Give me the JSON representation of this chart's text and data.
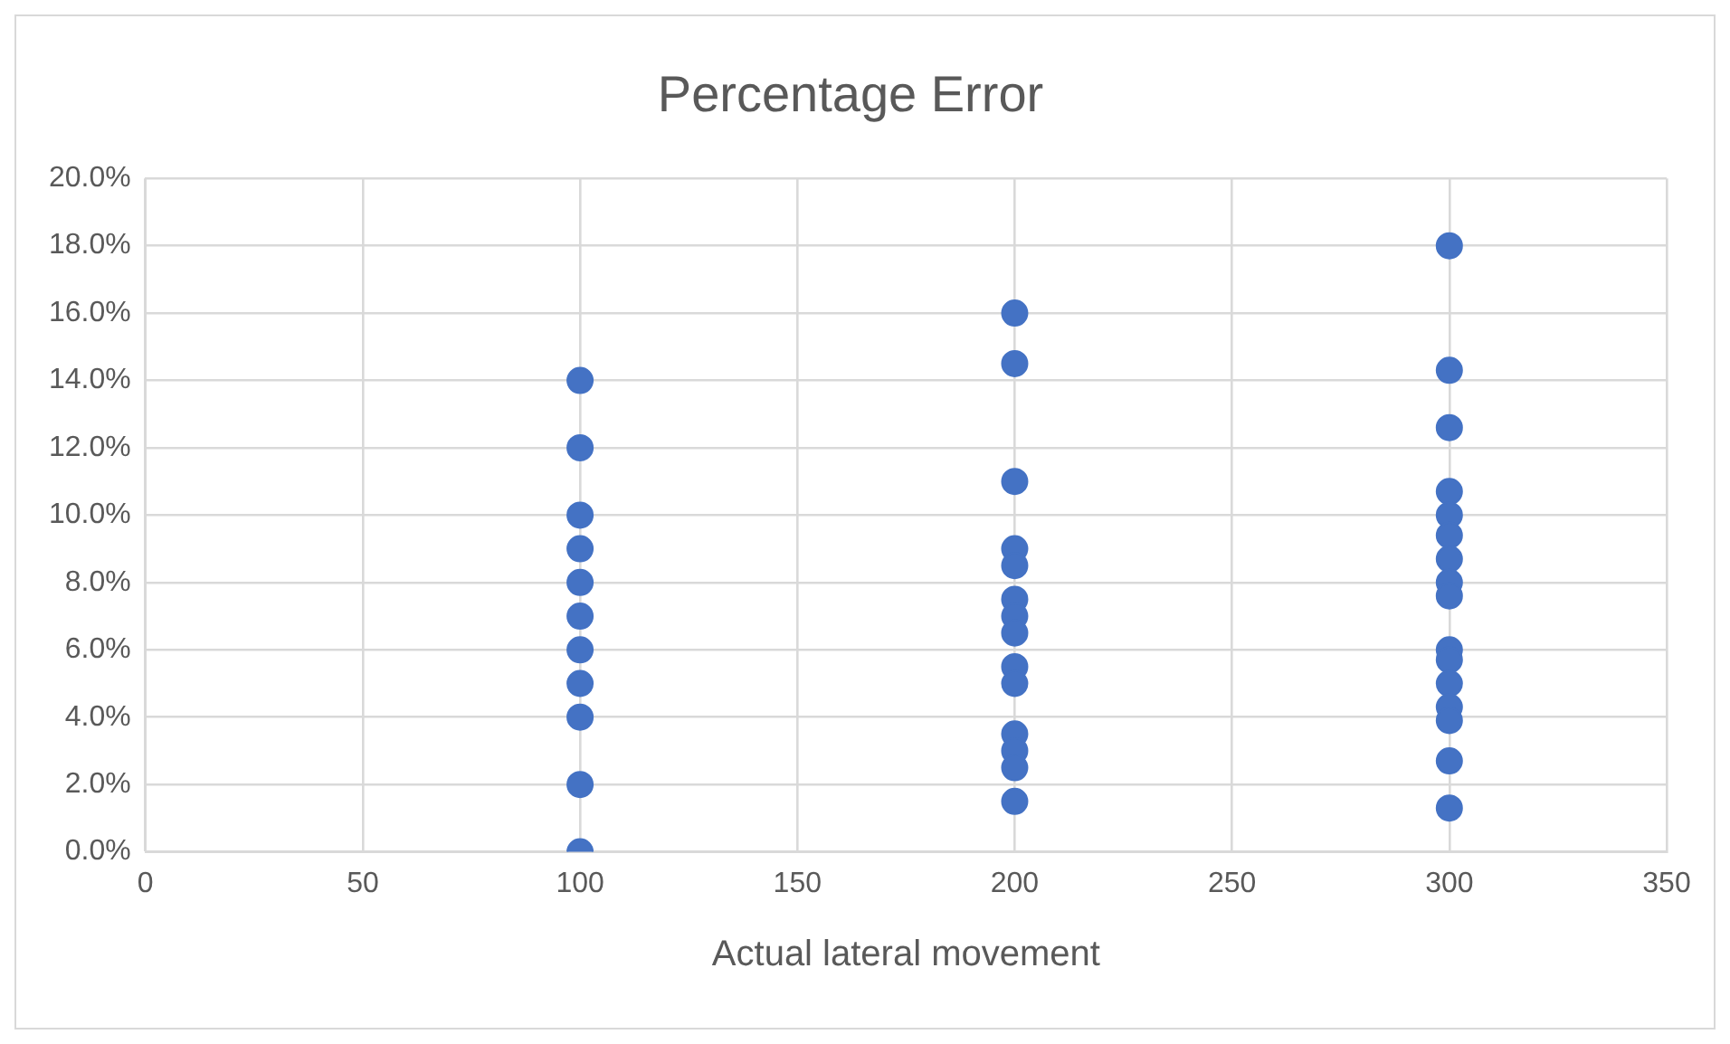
{
  "chart_data": {
    "type": "scatter",
    "title": "Percentage Error",
    "xlabel": "Actual lateral movement",
    "series": [
      {
        "color": "#4472c4",
        "x": [
          100,
          100,
          100,
          100,
          100,
          100,
          100,
          100,
          100,
          100,
          100,
          200,
          200,
          200,
          200,
          200,
          200,
          200,
          200,
          200,
          200,
          200,
          200,
          200,
          200,
          300,
          300,
          300,
          300,
          300,
          300,
          300,
          300,
          300,
          300,
          300,
          300,
          300,
          300,
          300,
          300
        ],
        "values": [
          14,
          12,
          10,
          9,
          8,
          7,
          6,
          5,
          4,
          2,
          0,
          16,
          14.5,
          11,
          9,
          8.5,
          7.5,
          7,
          6.5,
          5.5,
          5,
          3.5,
          3,
          2.5,
          1.5,
          18,
          14.3,
          12.6,
          10.7,
          10,
          9.4,
          8.7,
          8,
          7.6,
          6,
          5.7,
          5,
          4.3,
          3.9,
          2.7,
          1.3
        ]
      }
    ],
    "xlim": [
      0,
      350
    ],
    "xticks": [
      0,
      50,
      100,
      150,
      200,
      250,
      300,
      350
    ],
    "ylim": [
      0,
      20
    ],
    "yticks": [
      {
        "value": 0,
        "label": "0.0%"
      },
      {
        "value": 2,
        "label": "2.0%"
      },
      {
        "value": 4,
        "label": "4.0%"
      },
      {
        "value": 6,
        "label": "6.0%"
      },
      {
        "value": 8,
        "label": "8.0%"
      },
      {
        "value": 10,
        "label": "10.0%"
      },
      {
        "value": 12,
        "label": "12.0%"
      },
      {
        "value": 14,
        "label": "14.0%"
      },
      {
        "value": 16,
        "label": "16.0%"
      },
      {
        "value": 18,
        "label": "18.0%"
      },
      {
        "value": 20,
        "label": "20.0%"
      }
    ],
    "grid": true,
    "marker": "circle",
    "legend": false
  }
}
